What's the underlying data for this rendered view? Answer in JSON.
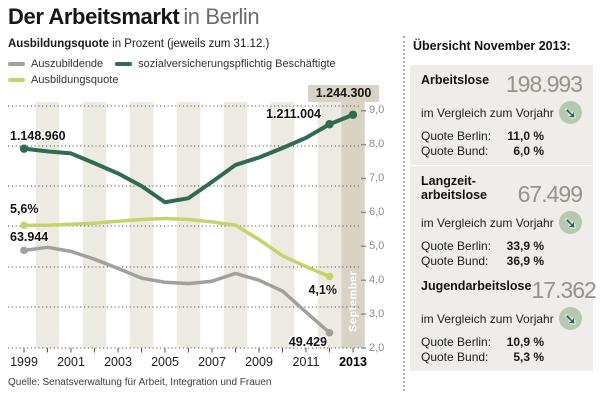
{
  "header": {
    "title_main": "Der Arbeitsmarkt",
    "title_sub": "in Berlin",
    "subtitle_bold": "Ausbildungsquote",
    "subtitle_rest": " in Prozent (jeweils zum 31.12.)"
  },
  "legend": {
    "items": [
      {
        "name": "auszubildende",
        "label": "Auszubildende",
        "color": "#a1a09c"
      },
      {
        "name": "beschaeftigte",
        "label": "sozialversicherungspflichtig Beschäftigte",
        "color": "#2e6b4f"
      },
      {
        "name": "ausbildungsquote",
        "label": "Ausbildungsquote",
        "color": "#c4d36c"
      }
    ]
  },
  "chart_data": {
    "type": "line",
    "title": "Ausbildungsquote in Prozent (jeweils zum 31.12.)",
    "x_years": [
      1999,
      2000,
      2001,
      2002,
      2003,
      2004,
      2005,
      2006,
      2007,
      2008,
      2009,
      2010,
      2011,
      2012,
      2013
    ],
    "x_tick_labels": [
      "1999",
      "2001",
      "2003",
      "2005",
      "2007",
      "2009",
      "2011",
      "2013"
    ],
    "y_axis": {
      "side": "right",
      "min": 2.0,
      "max": 9.0,
      "tick_labels": [
        "9,0",
        "8,0",
        "7,0",
        "6,0",
        "5,0",
        "4,0",
        "3,0",
        "2,0"
      ]
    },
    "highlight_column": {
      "label": "September",
      "year": 2013
    },
    "series": [
      {
        "name": "sozialversicherungspflichtig Beschäftigte",
        "color": "#2e6b4f",
        "width": 4,
        "axis_values": [
          7.88,
          7.8,
          7.74,
          7.45,
          7.15,
          6.78,
          6.3,
          6.42,
          6.9,
          7.4,
          7.62,
          7.9,
          8.2,
          8.6,
          8.88
        ],
        "marker_indices": [
          0,
          13,
          14
        ],
        "labeled_points": [
          {
            "year": 1999,
            "label": "1.148.960"
          },
          {
            "year": 2012,
            "label": "1.211.004"
          },
          {
            "year": 2013,
            "label": "1.244.300"
          }
        ]
      },
      {
        "name": "Ausbildungsquote",
        "color": "#c4d36c",
        "width": 3.5,
        "axis_values": [
          5.62,
          5.62,
          5.65,
          5.68,
          5.74,
          5.79,
          5.82,
          5.79,
          5.72,
          5.62,
          5.2,
          4.72,
          4.4,
          4.11
        ],
        "marker_indices": [
          0,
          13
        ],
        "labeled_points": [
          {
            "year": 1999,
            "label": "5,6%"
          },
          {
            "year": 2012,
            "label": "4,1%"
          }
        ]
      },
      {
        "name": "Auszubildende",
        "color": "#a1a09c",
        "width": 3.5,
        "axis_values": [
          4.88,
          4.97,
          4.85,
          4.62,
          4.35,
          4.06,
          3.94,
          3.9,
          3.97,
          4.2,
          4.0,
          3.68,
          3.06,
          2.45
        ],
        "marker_indices": [
          0,
          13
        ],
        "labeled_points": [
          {
            "year": 1999,
            "label": "63.944"
          },
          {
            "year": 2012,
            "label": "49.429"
          }
        ]
      }
    ]
  },
  "source": "Quelle: Senatsverwaltung für Arbeit, Integration und Frauen",
  "sidebar": {
    "heading": "Übersicht November 2013:",
    "boxes": [
      {
        "title": "Arbeitslose",
        "title_line2": "",
        "value": "198.993",
        "compare_label": "im Vergleich zum Vorjahr",
        "trend": "down-right",
        "rows": [
          {
            "label": "Quote Berlin:",
            "value": "11,0 %"
          },
          {
            "label": "Quote Bund:",
            "value": "6,0 %"
          }
        ]
      },
      {
        "title": "Langzeit-",
        "title_line2": "arbeitslose",
        "value": "67.499",
        "compare_label": "im Vergleich zum Vorjahr",
        "trend": "down-right",
        "rows": [
          {
            "label": "Quote Berlin:",
            "value": "33,9 %"
          },
          {
            "label": "Quote Bund:",
            "value": "36,9 %"
          }
        ]
      },
      {
        "title": "Jugendarbeitslose",
        "title_line2": "",
        "value": "17.362",
        "compare_label": "im Vergleich zum Vorjahr",
        "trend": "down-right",
        "rows": [
          {
            "label": "Quote Berlin:",
            "value": "10,9 %"
          },
          {
            "label": "Quote Bund:",
            "value": "5,3 %"
          }
        ]
      }
    ]
  },
  "icons": {
    "trend_down_right": "➘"
  },
  "colors": {
    "band_light": "#edebe1",
    "band_highlight": "#d8d3c4",
    "box_bg": "#efede9",
    "grid": "#565656",
    "axis_text": "#8a8a8a",
    "big_number": "#97928a",
    "icon_circle_bg": "#b7c8b2",
    "icon_arrow": "#2e6b4f"
  }
}
